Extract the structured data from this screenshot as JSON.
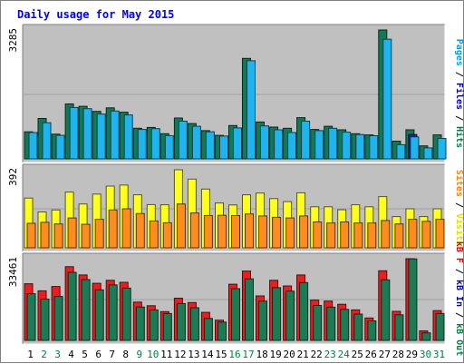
{
  "chart_data": {
    "type": "bar",
    "title": "Daily usage for May 2015",
    "categories": [
      "1",
      "2",
      "3",
      "4",
      "5",
      "6",
      "7",
      "8",
      "9",
      "10",
      "11",
      "12",
      "13",
      "14",
      "15",
      "16",
      "17",
      "18",
      "19",
      "20",
      "21",
      "22",
      "23",
      "24",
      "25",
      "26",
      "27",
      "28",
      "29",
      "30",
      "31"
    ],
    "weekend_days": [
      "2",
      "3",
      "9",
      "10",
      "16",
      "17",
      "23",
      "24",
      "30",
      "31"
    ],
    "panels": [
      {
        "name": "hits-files-pages",
        "ymax_label": "3285",
        "ymax": 3285,
        "legend": [
          {
            "text": "Pages",
            "color": "#00a0e0"
          },
          {
            "text": "Files",
            "color": "#0000c0"
          },
          {
            "text": "Hits",
            "color": "#008040"
          }
        ],
        "series": [
          {
            "name": "Hits",
            "color": "#0f7a55",
            "values": [
              690,
              1030,
              630,
              1400,
              1340,
              1210,
              1300,
              1190,
              780,
              800,
              640,
              1040,
              900,
              720,
              600,
              850,
              2560,
              940,
              810,
              780,
              1050,
              750,
              830,
              740,
              640,
              610,
              3285,
              450,
              740,
              330,
              610
            ]
          },
          {
            "name": "Files",
            "color": "#1020c0",
            "values": [
              0,
              0,
              0,
              0,
              0,
              0,
              0,
              0,
              0,
              0,
              0,
              0,
              0,
              0,
              0,
              0,
              0,
              0,
              0,
              0,
              0,
              0,
              0,
              0,
              0,
              0,
              0,
              0,
              620,
              0,
              0
            ]
          },
          {
            "name": "Pages",
            "color": "#1eb4ee",
            "values": [
              670,
              920,
              600,
              1310,
              1280,
              1140,
              1220,
              1120,
              750,
              770,
              590,
              960,
              830,
              690,
              580,
              790,
              2500,
              840,
              740,
              670,
              960,
              720,
              780,
              680,
              620,
              590,
              3050,
              360,
              560,
              280,
              520
            ]
          }
        ]
      },
      {
        "name": "visits-sites",
        "ymax_label": "392",
        "ymax": 392,
        "legend": [
          {
            "text": "Sites",
            "color": "#ff8000"
          },
          {
            "text": "Visits",
            "color": "#e0e000"
          }
        ],
        "series": [
          {
            "name": "Visits",
            "color": "#ffff1e",
            "values": [
              250,
              180,
              190,
              280,
              220,
              270,
              310,
              315,
              266,
              217,
              216,
              392,
              345,
              295,
              225,
              215,
              266,
              275,
              247,
              232,
              276,
              206,
              206,
              191,
              216,
              206,
              257,
              157,
              196,
              157,
              196
            ]
          },
          {
            "name": "Sites",
            "color": "#ff8c1e",
            "values": [
              123,
              128,
              120,
              150,
              118,
              143,
              190,
              196,
              172,
              135,
              126,
              220,
              175,
              162,
              163,
              162,
              170,
              160,
              153,
              150,
              160,
              130,
              125,
              130,
              125,
              125,
              137,
              120,
              143,
              133,
              143
            ]
          }
        ]
      },
      {
        "name": "kb-in-out",
        "ymax_label": "33461",
        "ymax": 33461,
        "legend": [
          {
            "text": "kB F",
            "color": "#e00000"
          },
          {
            "text": "kB In",
            "color": "#0000c0"
          },
          {
            "text": "kB Out",
            "color": "#008040"
          }
        ],
        "series": [
          {
            "name": "kB F",
            "color": "#ee1c1c",
            "values": [
              23200,
              20300,
              22100,
              30200,
              26800,
              23400,
              24600,
              23800,
              15700,
              14200,
              11800,
              17300,
              15500,
              11500,
              8300,
              23000,
              28400,
              18200,
              24600,
              22300,
              26800,
              16500,
              16100,
              14800,
              12500,
              9200,
              28500,
              11900,
              33461,
              3900,
              12200
            ]
          },
          {
            "name": "kB Out",
            "color": "#1c7a55",
            "values": [
              19100,
              16900,
              18000,
              27900,
              24900,
              20700,
              22700,
              21400,
              13700,
              12500,
              11000,
              15100,
              13400,
              9000,
              7500,
              21200,
              25200,
              16100,
              21600,
              20200,
              23700,
              14300,
              13600,
              12700,
              10800,
              8000,
              24800,
              10500,
              33400,
              3100,
              11000
            ]
          }
        ]
      }
    ]
  }
}
